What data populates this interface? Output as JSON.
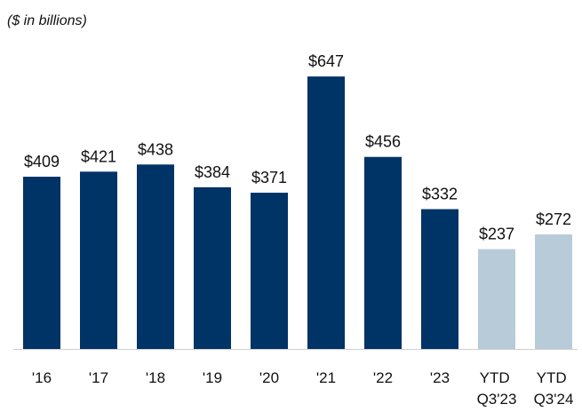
{
  "chart_data": {
    "type": "bar",
    "subtitle": "($ in billions)",
    "categories": [
      "'16",
      "'17",
      "'18",
      "'19",
      "'20",
      "'21",
      "'22",
      "'23",
      "YTD Q3'23",
      "YTD Q3'24"
    ],
    "values": [
      409,
      421,
      438,
      384,
      371,
      647,
      456,
      332,
      237,
      272
    ],
    "value_labels": [
      "$409",
      "$421",
      "$438",
      "$384",
      "$371",
      "$647",
      "$456",
      "$332",
      "$237",
      "$272"
    ],
    "colors": [
      "#003366",
      "#003366",
      "#003366",
      "#003366",
      "#003366",
      "#003366",
      "#003366",
      "#003366",
      "#b8cbd8",
      "#b8cbd8"
    ],
    "ylim": [
      0,
      700
    ]
  }
}
